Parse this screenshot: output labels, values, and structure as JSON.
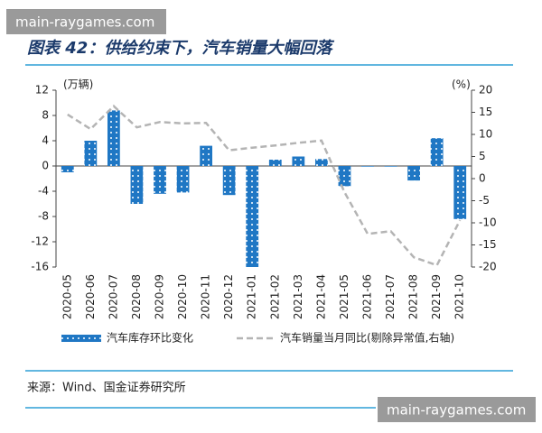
{
  "watermarks": [
    "main-raygames.com",
    "main-raygames.com"
  ],
  "chart_data": {
    "type": "combo",
    "title": "图表 42：供给约束下，汽车销量大幅回落",
    "source": "来源：Wind、国金证券研究所",
    "y_label": "(万辆)",
    "y2_label": "(%)",
    "categories": [
      "2020-05",
      "2020-06",
      "2020-07",
      "2020-08",
      "2020-09",
      "2020-10",
      "2020-11",
      "2020-12",
      "2021-01",
      "2021-02",
      "2021-03",
      "2021-04",
      "2021-05",
      "2021-06",
      "2021-07",
      "2021-08",
      "2021-09",
      "2021-10"
    ],
    "series": [
      {
        "name": "汽车库存环比变化",
        "type": "bar",
        "color": "#1f77c4",
        "values": [
          -1.0,
          4.0,
          8.8,
          -6.0,
          -4.4,
          -4.2,
          3.2,
          -4.6,
          -16.0,
          1.0,
          1.5,
          1.1,
          -3.2,
          -0.1,
          -0.1,
          -2.3,
          4.4,
          -8.4
        ]
      },
      {
        "name": "汽车销量当月同比(剔除异常值,右轴)",
        "type": "line",
        "color": "#b4b4b4",
        "axis": "y2",
        "values": [
          14.5,
          11.2,
          16.4,
          11.6,
          12.8,
          12.5,
          12.6,
          6.4,
          7.0,
          7.5,
          8.1,
          8.6,
          -3.1,
          -12.5,
          -11.9,
          -17.8,
          -19.6,
          -9.4
        ]
      }
    ],
    "ylim": [
      -16,
      12
    ],
    "yticks": [
      12,
      8,
      4,
      0,
      -4,
      -8,
      -12,
      -16
    ],
    "y2lim": [
      -20,
      20
    ],
    "y2ticks": [
      20,
      15,
      10,
      5,
      0,
      -5,
      -10,
      -15,
      -20
    ]
  }
}
